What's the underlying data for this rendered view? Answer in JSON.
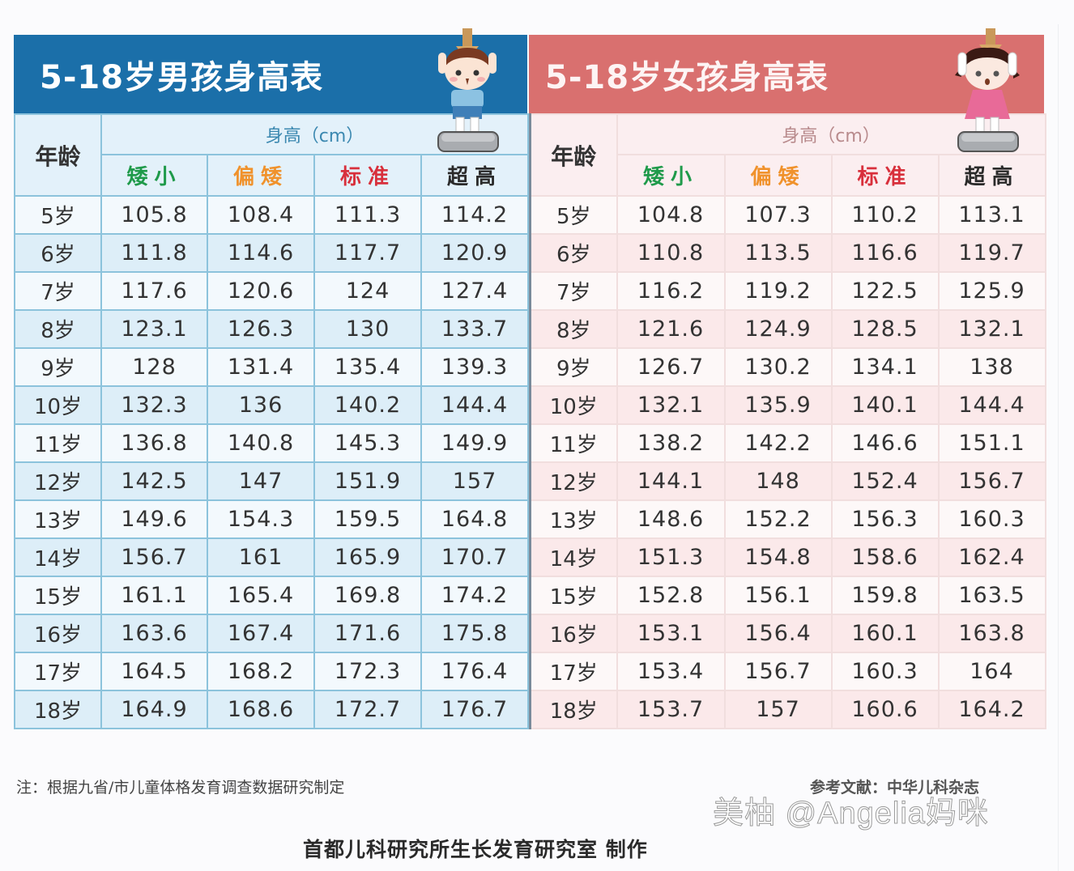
{
  "colors": {
    "boys_title_bg": "#1b6fa9",
    "girls_title_bg": "#d9706f",
    "short_label": "#1f9a4a",
    "below_avg_label": "#f0922c",
    "standard_label": "#d8303c",
    "tall_label": "#2a2a2a"
  },
  "boys": {
    "title": "5-18岁男孩身高表",
    "mascot_icon": "boy-on-scale-illustration",
    "header": {
      "age": "年龄",
      "group": "身高（cm）",
      "columns": [
        "矮小",
        "偏矮",
        "标准",
        "超高"
      ]
    },
    "rows": [
      {
        "age": "5岁",
        "values": [
          "105.8",
          "108.4",
          "111.3",
          "114.2"
        ]
      },
      {
        "age": "6岁",
        "values": [
          "111.8",
          "114.6",
          "117.7",
          "120.9"
        ]
      },
      {
        "age": "7岁",
        "values": [
          "117.6",
          "120.6",
          "124",
          "127.4"
        ]
      },
      {
        "age": "8岁",
        "values": [
          "123.1",
          "126.3",
          "130",
          "133.7"
        ]
      },
      {
        "age": "9岁",
        "values": [
          "128",
          "131.4",
          "135.4",
          "139.3"
        ]
      },
      {
        "age": "10岁",
        "values": [
          "132.3",
          "136",
          "140.2",
          "144.4"
        ]
      },
      {
        "age": "11岁",
        "values": [
          "136.8",
          "140.8",
          "145.3",
          "149.9"
        ]
      },
      {
        "age": "12岁",
        "values": [
          "142.5",
          "147",
          "151.9",
          "157"
        ]
      },
      {
        "age": "13岁",
        "values": [
          "149.6",
          "154.3",
          "159.5",
          "164.8"
        ]
      },
      {
        "age": "14岁",
        "values": [
          "156.7",
          "161",
          "165.9",
          "170.7"
        ]
      },
      {
        "age": "15岁",
        "values": [
          "161.1",
          "165.4",
          "169.8",
          "174.2"
        ]
      },
      {
        "age": "16岁",
        "values": [
          "163.6",
          "167.4",
          "171.6",
          "175.8"
        ]
      },
      {
        "age": "17岁",
        "values": [
          "164.5",
          "168.2",
          "172.3",
          "176.4"
        ]
      },
      {
        "age": "18岁",
        "values": [
          "164.9",
          "168.6",
          "172.7",
          "176.7"
        ]
      }
    ]
  },
  "girls": {
    "title": "5-18岁女孩身高表",
    "mascot_icon": "girl-on-scale-illustration",
    "header": {
      "age": "年龄",
      "group": "身高（cm）",
      "columns": [
        "矮小",
        "偏矮",
        "标准",
        "超高"
      ]
    },
    "rows": [
      {
        "age": "5岁",
        "values": [
          "104.8",
          "107.3",
          "110.2",
          "113.1"
        ]
      },
      {
        "age": "6岁",
        "values": [
          "110.8",
          "113.5",
          "116.6",
          "119.7"
        ]
      },
      {
        "age": "7岁",
        "values": [
          "116.2",
          "119.2",
          "122.5",
          "125.9"
        ]
      },
      {
        "age": "8岁",
        "values": [
          "121.6",
          "124.9",
          "128.5",
          "132.1"
        ]
      },
      {
        "age": "9岁",
        "values": [
          "126.7",
          "130.2",
          "134.1",
          "138"
        ]
      },
      {
        "age": "10岁",
        "values": [
          "132.1",
          "135.9",
          "140.1",
          "144.4"
        ]
      },
      {
        "age": "11岁",
        "values": [
          "138.2",
          "142.2",
          "146.6",
          "151.1"
        ]
      },
      {
        "age": "12岁",
        "values": [
          "144.1",
          "148",
          "152.4",
          "156.7"
        ]
      },
      {
        "age": "13岁",
        "values": [
          "148.6",
          "152.2",
          "156.3",
          "160.3"
        ]
      },
      {
        "age": "14岁",
        "values": [
          "151.3",
          "154.8",
          "158.6",
          "162.4"
        ]
      },
      {
        "age": "15岁",
        "values": [
          "152.8",
          "156.1",
          "159.8",
          "163.5"
        ]
      },
      {
        "age": "16岁",
        "values": [
          "153.1",
          "156.4",
          "160.1",
          "163.8"
        ]
      },
      {
        "age": "17岁",
        "values": [
          "153.4",
          "156.7",
          "160.3",
          "164"
        ]
      },
      {
        "age": "18岁",
        "values": [
          "153.7",
          "157",
          "160.6",
          "164.2"
        ]
      }
    ]
  },
  "footer": {
    "note": "注：根据九省/市儿童体格发育调查数据研究制定",
    "reference": "参考文献：中华儿科杂志",
    "watermark": "美柚 @Angelia妈咪",
    "credit": "首都儿科研究所生长发育研究室 制作"
  }
}
